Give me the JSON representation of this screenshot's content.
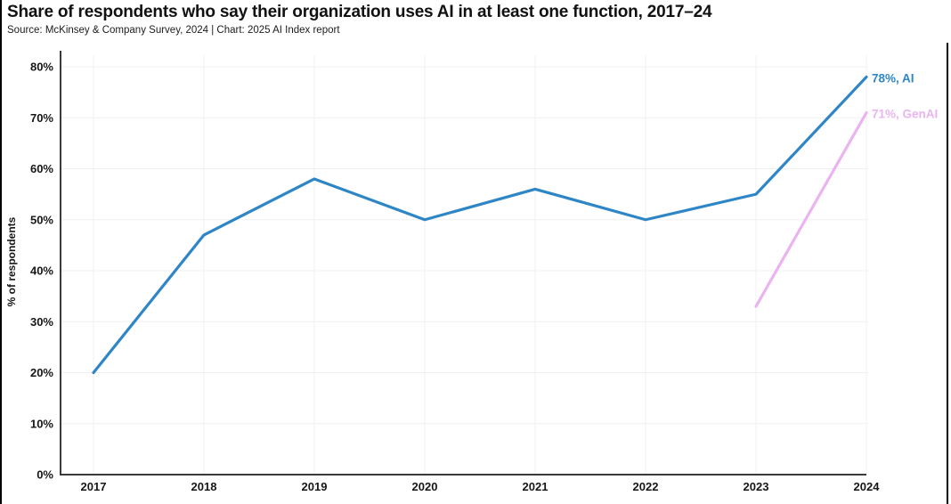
{
  "page": {
    "title": "Share of respondents who say their organization uses AI in at least one function, 2017–24",
    "source": "Source: McKinsey & Company Survey, 2024 | Chart: 2025 AI Index report"
  },
  "chart_data": {
    "type": "line",
    "title": "Share of respondents who say their organization uses AI in at least one function, 2017–24",
    "source": "Source: McKinsey & Company Survey, 2024 | Chart: 2025 AI Index report",
    "xlabel": "",
    "ylabel": "% of respondents",
    "x": [
      2017,
      2018,
      2019,
      2020,
      2021,
      2022,
      2023,
      2024
    ],
    "x_labels": [
      "2017",
      "2018",
      "2019",
      "2020",
      "2021",
      "2022",
      "2023",
      "2024"
    ],
    "series": [
      {
        "name": "AI",
        "color": "#2E86C6",
        "x": [
          2017,
          2018,
          2019,
          2020,
          2021,
          2022,
          2023,
          2024
        ],
        "values": [
          20,
          47,
          58,
          50,
          56,
          50,
          55,
          78
        ],
        "end_label": "78%, AI"
      },
      {
        "name": "GenAI",
        "color": "#EBB4F1",
        "x": [
          2023,
          2024
        ],
        "values": [
          33,
          71
        ],
        "end_label": "71%, GenAI"
      }
    ],
    "ylim": [
      0,
      80
    ],
    "yticks": [
      0,
      10,
      20,
      30,
      40,
      50,
      60,
      70,
      80
    ],
    "ytick_format": "{v}%",
    "grid": true,
    "legend": "end-of-line labels",
    "colors": {
      "axis": "#3A3A3A",
      "gridline": "#F0F0F0",
      "text": "#161616",
      "ai_line": "#2E86C6",
      "genai_line": "#EBB4F1"
    }
  }
}
